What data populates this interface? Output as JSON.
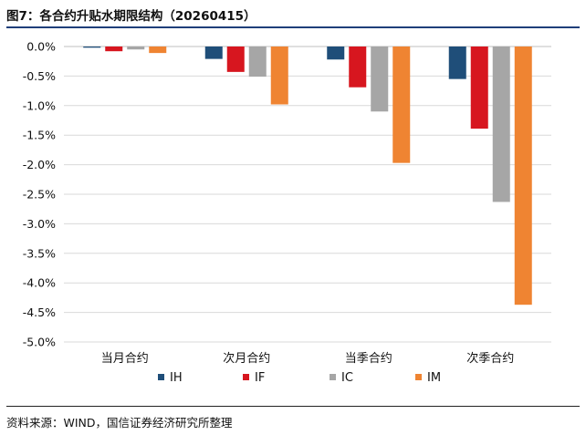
{
  "figure": {
    "title": "图7：各合约升贴水期限结构（20260415）",
    "source": "资料来源：WIND，国信证券经济研究所整理"
  },
  "chart_data": {
    "type": "bar",
    "title": "",
    "xlabel": "",
    "ylabel": "",
    "categories": [
      "当月合约",
      "次月合约",
      "当季合约",
      "次季合约"
    ],
    "ylim": [
      -5.0,
      0.0
    ],
    "yticks": [
      0.0,
      -0.5,
      -1.0,
      -1.5,
      -2.0,
      -2.5,
      -3.0,
      -3.5,
      -4.0,
      -4.5,
      -5.0
    ],
    "ytick_labels": [
      "0.0%",
      "-0.5%",
      "-1.0%",
      "-1.5%",
      "-2.0%",
      "-2.5%",
      "-3.0%",
      "-3.5%",
      "-4.0%",
      "-4.5%",
      "-5.0%"
    ],
    "grid": true,
    "legend_position": "bottom",
    "series": [
      {
        "name": "IH",
        "color": "#1f4e79",
        "values": [
          -0.02,
          -0.21,
          -0.22,
          -0.55
        ]
      },
      {
        "name": "IF",
        "color": "#d7161f",
        "values": [
          -0.08,
          -0.43,
          -0.69,
          -1.39
        ]
      },
      {
        "name": "IC",
        "color": "#a6a6a6",
        "values": [
          -0.05,
          -0.51,
          -1.1,
          -2.63
        ]
      },
      {
        "name": "IM",
        "color": "#ef8432",
        "values": [
          -0.11,
          -0.98,
          -1.97,
          -4.37
        ]
      }
    ]
  }
}
